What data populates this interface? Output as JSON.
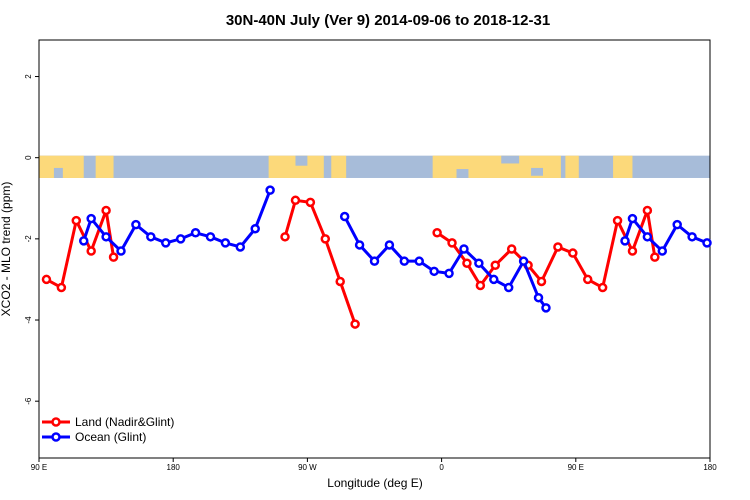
{
  "chart_data": {
    "type": "line",
    "title": "30N-40N July (Ver 9)   2014-09-06 to 2018-12-31",
    "xlabel": "Longitude (deg E)",
    "ylabel": "XCO2 - MLO trend (ppm)",
    "xlim": [
      90,
      540
    ],
    "ylim": [
      -7.4,
      2.9
    ],
    "x_ticks": [
      {
        "value": 90,
        "label": "90 E"
      },
      {
        "value": 180,
        "label": "180"
      },
      {
        "value": 270,
        "label": "90 W"
      },
      {
        "value": 360,
        "label": "0"
      },
      {
        "value": 450,
        "label": "90 E"
      },
      {
        "value": 540,
        "label": "180"
      }
    ],
    "y_ticks": [
      {
        "value": 2,
        "label": "2"
      },
      {
        "value": 0,
        "label": "0"
      },
      {
        "value": -2,
        "label": "-2"
      },
      {
        "value": -4,
        "label": "-4"
      },
      {
        "value": -6,
        "label": "-6"
      }
    ],
    "grid": false,
    "legend_position": "bottom-left",
    "map_band": {
      "ymin": -0.5,
      "ymax": 0.05,
      "ocean_color": "#a7bcd9",
      "land_color": "#fcd97a"
    },
    "series": [
      {
        "name": "Land (Nadir&Glint)",
        "color": "#ff0000",
        "segments": [
          [
            [
              95,
              -3.0
            ],
            [
              105,
              -3.2
            ],
            [
              115,
              -1.55
            ],
            [
              125,
              -2.3
            ],
            [
              135,
              -1.3
            ],
            [
              140,
              -2.45
            ]
          ],
          [
            [
              255,
              -1.95
            ],
            [
              262,
              -1.05
            ],
            [
              272,
              -1.1
            ],
            [
              282,
              -2.0
            ],
            [
              292,
              -3.05
            ],
            [
              302,
              -4.1
            ]
          ],
          [
            [
              357,
              -1.85
            ],
            [
              367,
              -2.1
            ],
            [
              377,
              -2.6
            ],
            [
              386,
              -3.15
            ],
            [
              396,
              -2.65
            ],
            [
              407,
              -2.25
            ],
            [
              418,
              -2.65
            ],
            [
              427,
              -3.05
            ],
            [
              438,
              -2.2
            ],
            [
              448,
              -2.35
            ],
            [
              458,
              -3.0
            ],
            [
              468,
              -3.2
            ],
            [
              478,
              -1.55
            ],
            [
              488,
              -2.3
            ],
            [
              498,
              -1.3
            ],
            [
              503,
              -2.45
            ]
          ]
        ]
      },
      {
        "name": "Ocean (Glint)",
        "color": "#0000ff",
        "segments": [
          [
            [
              120,
              -2.05
            ],
            [
              125,
              -1.5
            ],
            [
              135,
              -1.95
            ],
            [
              145,
              -2.3
            ],
            [
              155,
              -1.65
            ],
            [
              165,
              -1.95
            ],
            [
              175,
              -2.1
            ],
            [
              185,
              -2.0
            ],
            [
              195,
              -1.85
            ],
            [
              205,
              -1.95
            ],
            [
              215,
              -2.1
            ],
            [
              225,
              -2.2
            ],
            [
              235,
              -1.75
            ],
            [
              245,
              -0.8
            ]
          ],
          [
            [
              295,
              -1.45
            ],
            [
              305,
              -2.15
            ],
            [
              315,
              -2.55
            ],
            [
              325,
              -2.15
            ],
            [
              335,
              -2.55
            ],
            [
              345,
              -2.55
            ],
            [
              355,
              -2.8
            ],
            [
              365,
              -2.85
            ],
            [
              375,
              -2.25
            ],
            [
              385,
              -2.6
            ],
            [
              395,
              -3.0
            ],
            [
              405,
              -3.2
            ],
            [
              415,
              -2.55
            ],
            [
              425,
              -3.45
            ],
            [
              430,
              -3.7
            ]
          ],
          [
            [
              483,
              -2.05
            ],
            [
              488,
              -1.5
            ],
            [
              498,
              -1.95
            ],
            [
              508,
              -2.3
            ],
            [
              518,
              -1.65
            ],
            [
              528,
              -1.95
            ],
            [
              538,
              -2.1
            ]
          ]
        ]
      }
    ]
  }
}
